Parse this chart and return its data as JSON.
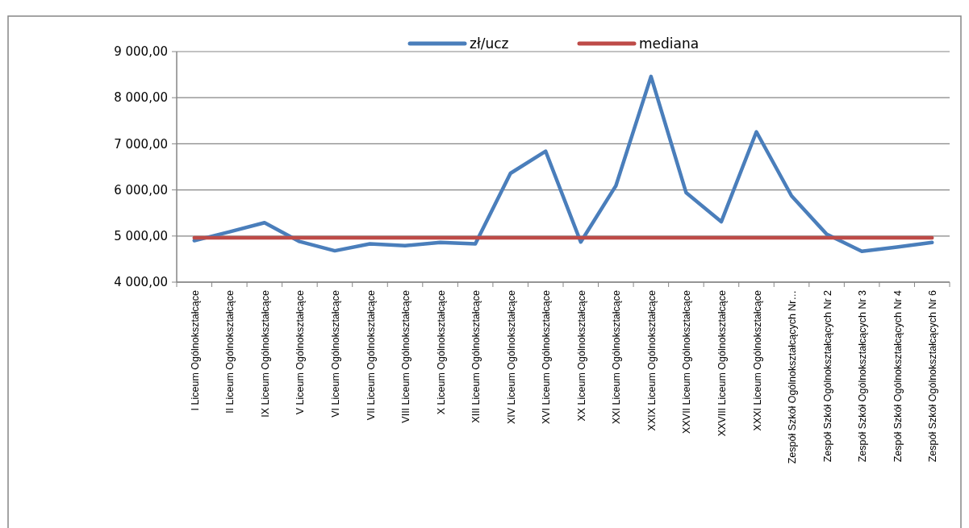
{
  "chart_data": {
    "type": "line",
    "categories": [
      "I Liceum Ogólnokształcące",
      "II Liceum Ogólnokształcące",
      "IX Liceum Ogólnokształcące",
      "V Liceum Ogólnokształcące",
      "VI Liceum Ogólnokształcące",
      "VII Liceum Ogólnokształcące",
      "VIII Liceum Ogólnokształcące",
      "X Liceum Ogólnokształcące",
      "XIII Liceum Ogólnokształcące",
      "XIV Liceum Ogólnokształcące",
      "XVI Liceum Ogólnokształcące",
      "XX  Liceum Ogólnokształcące",
      "XXI Liceum Ogólnokształcące",
      "XXIX Liceum Ogólnokształcące",
      "XXVII Liceum Ogólnokształcące",
      "XXVIII Liceum Ogólnokształcące",
      "XXXI Liceum Ogólnokształcące",
      "Zespół Szkół Ogólnokształcących Nr…",
      "Zespół Szkół Ogólnokształcących Nr 2",
      "Zespół Szkół Ogólnokształcących Nr 3",
      "Zespół Szkół Ogólnokształcących Nr 4",
      "Zespół Szkół Ogólnokształcących Nr 6"
    ],
    "series": [
      {
        "name": "zł/ucz",
        "color": "#4a7ebb",
        "values": [
          4900,
          5090,
          5290,
          4880,
          4680,
          4830,
          4790,
          4860,
          4830,
          6360,
          6840,
          4870,
          6090,
          8460,
          5940,
          5310,
          7260,
          5870,
          5040,
          4670,
          4760,
          4860
        ]
      },
      {
        "name": "mediana",
        "color": "#be4b48",
        "values": [
          4960,
          4960,
          4960,
          4960,
          4960,
          4960,
          4960,
          4960,
          4960,
          4960,
          4960,
          4960,
          4960,
          4960,
          4960,
          4960,
          4960,
          4960,
          4960,
          4960,
          4960,
          4960
        ]
      }
    ],
    "ylim": [
      4000,
      9000
    ],
    "yticks": [
      {
        "value": 4000,
        "label": "4 000,00"
      },
      {
        "value": 5000,
        "label": "5 000,00"
      },
      {
        "value": 6000,
        "label": "6 000,00"
      },
      {
        "value": 7000,
        "label": "7 000,00"
      },
      {
        "value": 8000,
        "label": "8 000,00"
      },
      {
        "value": 9000,
        "label": "9 000,00"
      }
    ],
    "grid": "y",
    "legend": "top",
    "marker": "none",
    "line_style": "solid"
  }
}
